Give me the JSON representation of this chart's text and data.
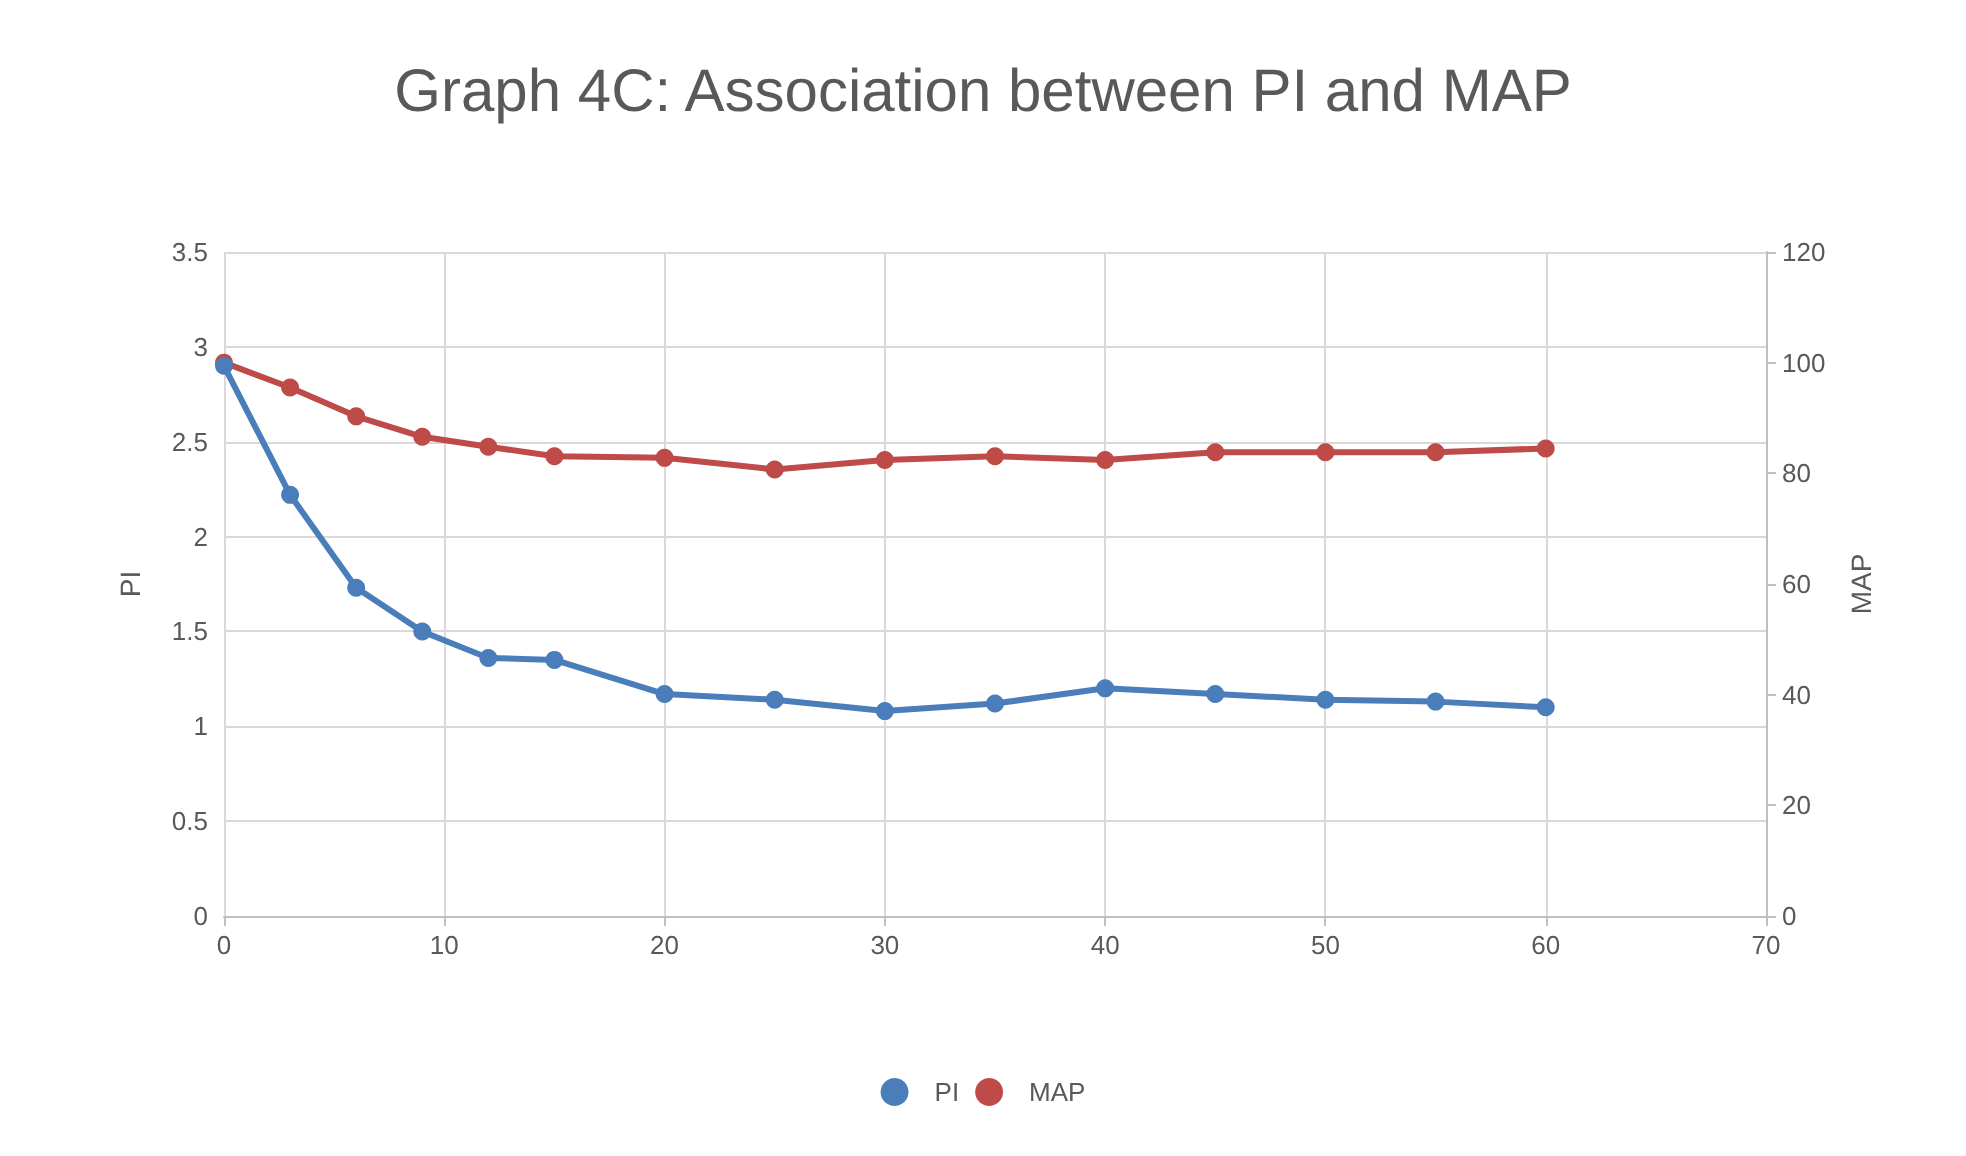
{
  "chart_data": {
    "type": "line",
    "title": "Graph 4C: Association between PI and MAP",
    "ylabel": "PI",
    "y2label": "MAP",
    "x": [
      0,
      3,
      6,
      9,
      12,
      15,
      20,
      25,
      30,
      35,
      40,
      45,
      50,
      55,
      60
    ],
    "series": [
      {
        "name": "PI",
        "color": "#4a7ebb",
        "values": [
          2.9,
          2.22,
          1.73,
          1.5,
          1.36,
          1.35,
          1.17,
          1.14,
          1.08,
          1.12,
          1.2,
          1.17,
          1.14,
          1.13,
          1.1
        ]
      },
      {
        "name": "MAP",
        "color": "#be4b48",
        "axis": "y2",
        "values": [
          100,
          95.5,
          90.3,
          86.6,
          84.8,
          83.1,
          82.8,
          80.7,
          82.4,
          83.1,
          82.4,
          83.8,
          83.8,
          83.8,
          84.5
        ]
      }
    ],
    "xlim": [
      0,
      70
    ],
    "xticks": [
      0,
      10,
      20,
      30,
      40,
      50,
      60,
      70
    ],
    "ylim": [
      0,
      3.5
    ],
    "yticks": [
      0,
      0.5,
      1,
      1.5,
      2,
      2.5,
      3,
      3.5
    ],
    "y2lim": [
      0,
      120
    ],
    "y2ticks": [
      0,
      20,
      40,
      60,
      80,
      100,
      120
    ],
    "grid": true,
    "legend": "bottom",
    "marker": "circle",
    "line_style": "solid"
  }
}
